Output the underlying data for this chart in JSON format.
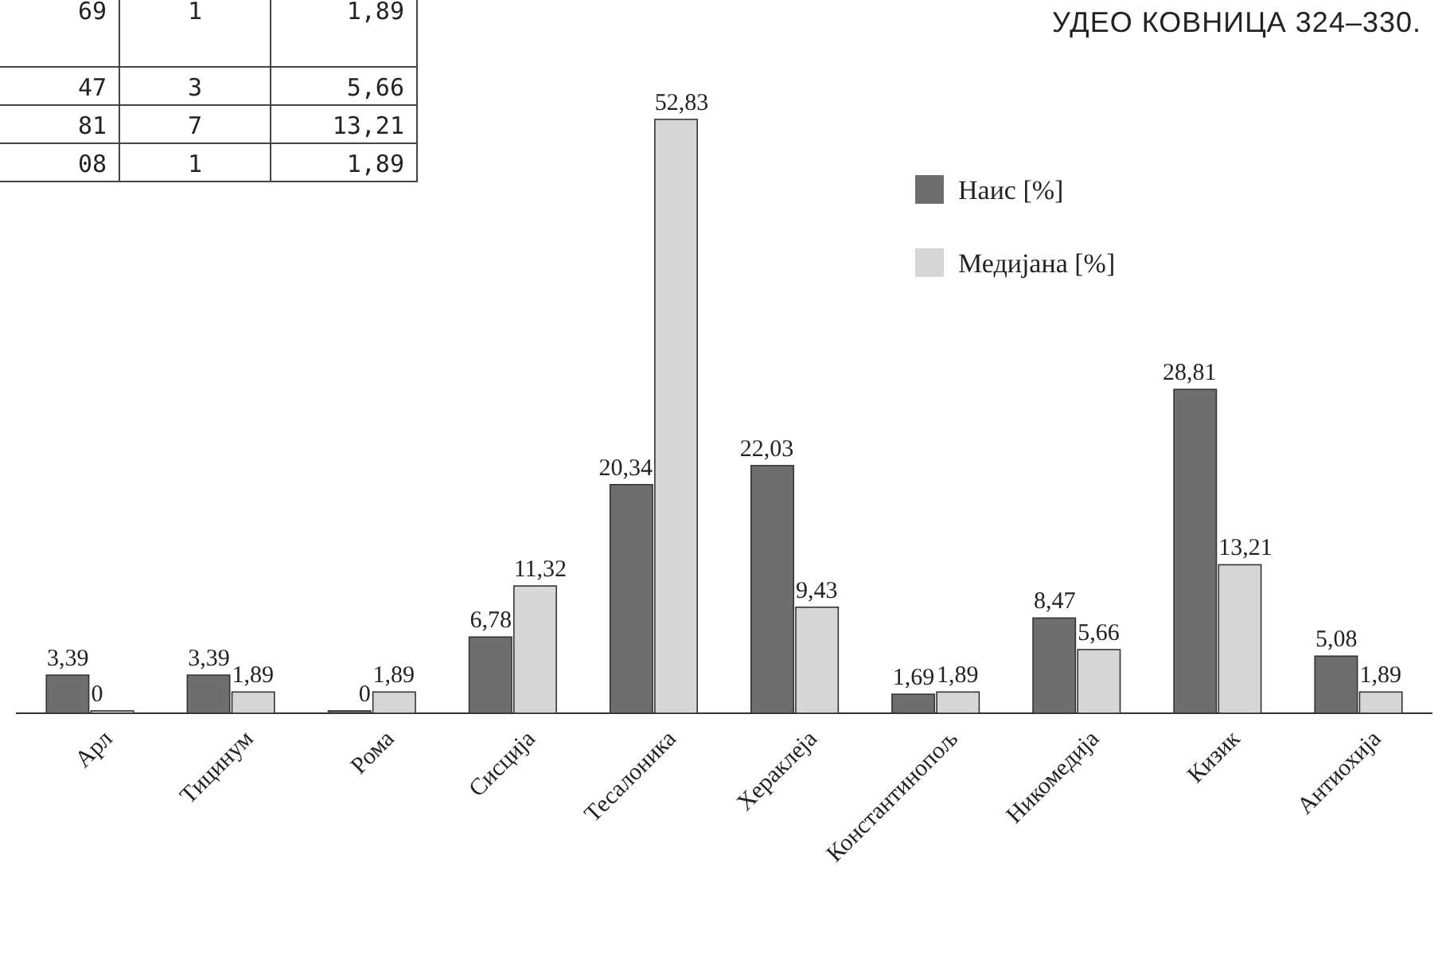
{
  "chart_data": {
    "type": "bar",
    "title": "УДЕО КОВНИЦА 324–330.",
    "categories": [
      "Арл",
      "Тицинум",
      "Рома",
      "Сисција",
      "Тесалоника",
      "Хераклеја",
      "Константинопољ",
      "Никомедија",
      "Кизик",
      "Антиохија"
    ],
    "series": [
      {
        "name": "Наис [%]",
        "color": "#6e6e6e",
        "values": [
          3.39,
          3.39,
          0,
          6.78,
          20.34,
          22.03,
          1.69,
          8.47,
          28.81,
          5.08
        ],
        "value_labels": [
          "3,39",
          "3,39",
          "0",
          "6,78",
          "20,34",
          "22,03",
          "1,69",
          "8,47",
          "28,81",
          "5,08"
        ]
      },
      {
        "name": "Медијана [%]",
        "color": "#d6d6d6",
        "values": [
          0,
          1.89,
          1.89,
          11.32,
          52.83,
          9.43,
          1.89,
          5.66,
          13.21,
          1.89
        ],
        "value_labels": [
          "0",
          "1,89",
          "1,89",
          "11,32",
          "52,83",
          "9,43",
          "1,89",
          "5,66",
          "13,21",
          "1,89"
        ]
      }
    ],
    "legend": "top right",
    "annotations": [
      "69",
      "1",
      "1,89",
      "47",
      "3",
      "5,66",
      "81",
      "7",
      "13,21",
      "08",
      "1",
      "1,89"
    ]
  }
}
